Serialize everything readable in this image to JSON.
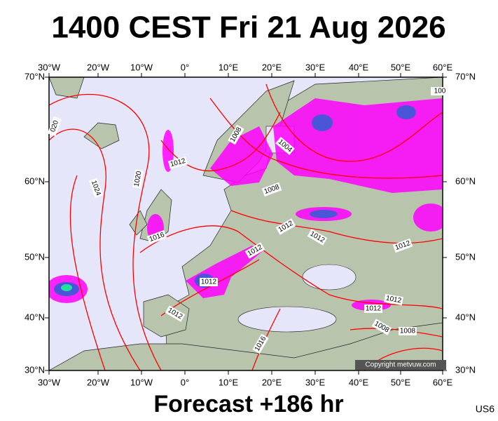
{
  "header": {
    "title": "1400 CEST Fri 21 Aug 2026"
  },
  "longitudes": [
    "30°W",
    "20°W",
    "10°W",
    "0°",
    "10°E",
    "20°E",
    "30°E",
    "40°E",
    "50°E",
    "60°E"
  ],
  "latitudes": [
    "70°N",
    "60°N",
    "50°N",
    "40°N",
    "30°N"
  ],
  "isobar_labels": [
    "020",
    "1024",
    "1020",
    "1012",
    "1008",
    "1004",
    "1008",
    "1012",
    "1016",
    "1012",
    "1012",
    "1012",
    "1012",
    "1012",
    "1012",
    "1012",
    "1008",
    "1008",
    "1016",
    "100"
  ],
  "copyright": "Copyright metvuw.com",
  "footer": {
    "forecast": "Forecast +186 hr",
    "code": "US6"
  }
}
